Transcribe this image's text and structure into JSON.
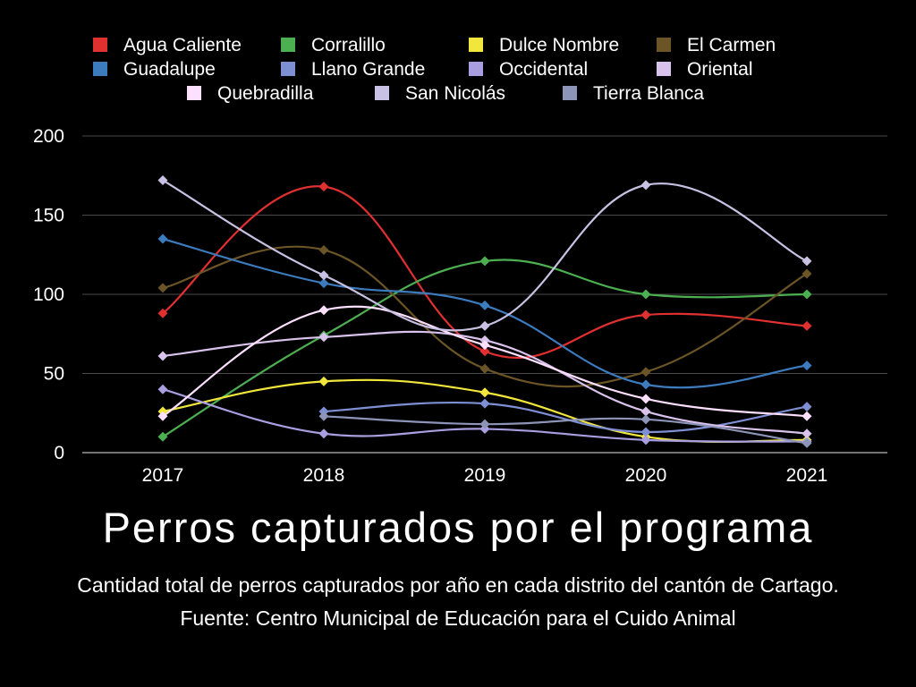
{
  "chart_data": {
    "type": "line",
    "title": "Perros capturados por el programa",
    "subtitle": "Cantidad total de perros capturados por año en cada distrito del cantón de Cartago. Fuente: Centro Municipal de Educación para el Cuido Animal",
    "x": [
      "2017",
      "2018",
      "2019",
      "2020",
      "2021"
    ],
    "ylim": [
      0,
      200
    ],
    "yticks": [
      0,
      50,
      100,
      150,
      200
    ],
    "grid": true,
    "smooth": true,
    "legend_position": "top",
    "series": [
      {
        "name": "Agua Caliente",
        "color": "#e03030",
        "values": [
          88,
          168,
          64,
          87,
          80
        ]
      },
      {
        "name": "Corralillo",
        "color": "#4caf50",
        "values": [
          10,
          74,
          121,
          100,
          100
        ]
      },
      {
        "name": "Dulce Nombre",
        "color": "#f0e63c",
        "values": [
          26,
          45,
          38,
          10,
          8
        ]
      },
      {
        "name": "El Carmen",
        "color": "#6b5527",
        "values": [
          104,
          128,
          53,
          51,
          113
        ]
      },
      {
        "name": "Guadalupe",
        "color": "#3d7bbf",
        "values": [
          135,
          107,
          93,
          43,
          55
        ]
      },
      {
        "name": "Llano Grande",
        "color": "#7f8fd4",
        "values": [
          null,
          26,
          31,
          13,
          29
        ]
      },
      {
        "name": "Occidental",
        "color": "#a89ee0",
        "values": [
          40,
          12,
          15,
          8,
          7
        ]
      },
      {
        "name": "Oriental",
        "color": "#d9c2ec",
        "values": [
          61,
          73,
          71,
          26,
          12
        ]
      },
      {
        "name": "Quebradilla",
        "color": "#fde0ff",
        "values": [
          23,
          90,
          68,
          34,
          23
        ]
      },
      {
        "name": "San Nicolás",
        "color": "#c9c1e3",
        "values": [
          172,
          112,
          80,
          169,
          121
        ]
      },
      {
        "name": "Tierra Blanca",
        "color": "#8c94b8",
        "values": [
          null,
          23,
          18,
          21,
          6
        ]
      }
    ]
  }
}
